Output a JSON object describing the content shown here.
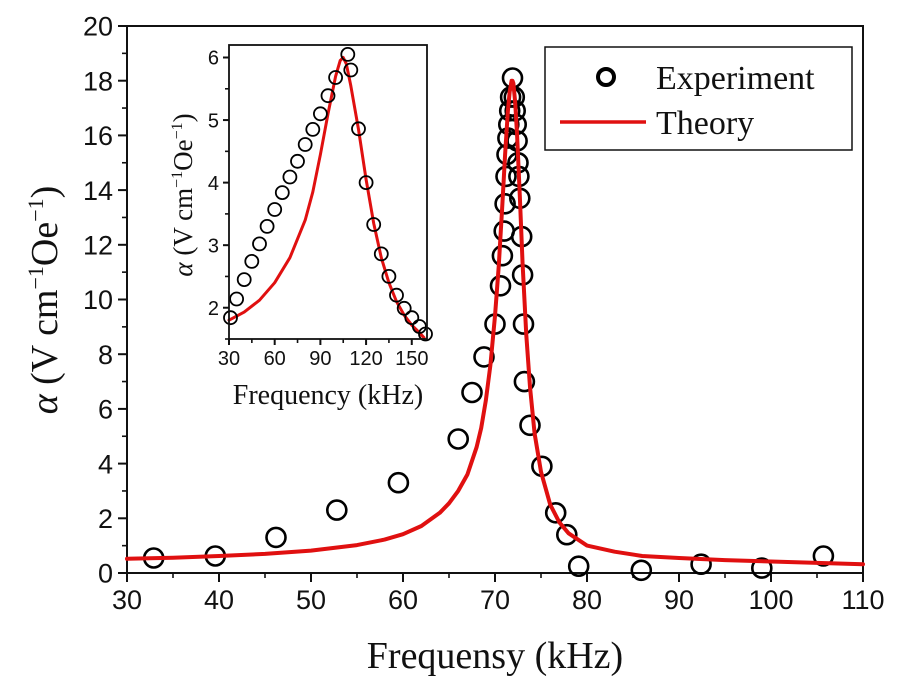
{
  "chart_data": [
    {
      "id": "main",
      "type": "scatter",
      "title": "",
      "xlabel": "Frequensy (kHz)",
      "ylabel": "α (V cm⁻¹Oe⁻¹)",
      "ylabel_parts": {
        "symbol": "α",
        "unit_a": " (V cm",
        "exp_a": "−1",
        "unit_b": "Oe",
        "exp_b": "−1",
        "close": ")"
      },
      "xlim": [
        30,
        110
      ],
      "ylim": [
        0,
        20
      ],
      "xticks": [
        30,
        40,
        50,
        60,
        70,
        80,
        90,
        100,
        110
      ],
      "yticks": [
        0,
        2,
        4,
        6,
        8,
        10,
        12,
        14,
        16,
        18,
        20
      ],
      "grid": false,
      "legend": {
        "placement": "top-right",
        "entries": [
          {
            "label": "Experiment",
            "marker": "circle"
          },
          {
            "label": "Theory",
            "marker": "line"
          }
        ]
      },
      "series": [
        {
          "name": "Experiment",
          "kind": "scatter",
          "color": "#000000",
          "x": [
            32.9,
            39.6,
            46.2,
            52.8,
            59.5,
            66.0,
            67.5,
            68.8,
            70.0,
            70.6,
            70.8,
            71.0,
            71.1,
            71.2,
            71.3,
            71.4,
            71.5,
            71.6,
            71.7,
            71.9,
            72.1,
            72.2,
            72.3,
            72.4,
            72.5,
            72.6,
            72.7,
            72.9,
            73.0,
            73.1,
            73.2,
            73.8,
            75.1,
            76.6,
            77.8,
            79.1,
            85.9,
            92.4,
            99.0,
            105.7
          ],
          "y": [
            0.55,
            0.62,
            1.3,
            2.3,
            3.3,
            4.9,
            6.6,
            7.9,
            9.1,
            10.5,
            11.6,
            12.5,
            13.5,
            14.5,
            15.3,
            15.9,
            16.4,
            16.9,
            17.4,
            18.1,
            17.4,
            16.9,
            16.4,
            15.8,
            15.0,
            14.5,
            13.7,
            12.3,
            10.9,
            9.1,
            7.0,
            5.4,
            3.9,
            2.2,
            1.4,
            0.25,
            0.1,
            0.32,
            0.18,
            0.62
          ]
        },
        {
          "name": "Theory",
          "kind": "line",
          "color": "#e01010",
          "model": "lorentzian",
          "peak_x": 71.9,
          "peak_y": 18.0,
          "x": [
            30,
            35,
            40,
            45,
            50,
            55,
            58,
            60,
            62,
            64,
            65,
            66,
            67,
            68,
            68.5,
            69,
            69.5,
            70,
            70.4,
            70.8,
            71.1,
            71.4,
            71.6,
            71.8,
            71.9,
            72.0,
            72.2,
            72.4,
            72.7,
            73.0,
            73.4,
            73.8,
            74.3,
            75,
            76,
            77,
            78,
            80,
            83,
            86,
            90,
            95,
            100,
            105,
            110
          ],
          "y": [
            0.52,
            0.56,
            0.62,
            0.7,
            0.82,
            1.02,
            1.22,
            1.42,
            1.72,
            2.2,
            2.55,
            3.0,
            3.6,
            4.6,
            5.3,
            6.3,
            7.6,
            9.4,
            11.2,
            13.5,
            15.3,
            16.9,
            17.6,
            18.0,
            18.0,
            17.9,
            17.2,
            16.0,
            13.8,
            11.3,
            8.7,
            6.8,
            5.1,
            3.7,
            2.5,
            1.85,
            1.45,
            1.0,
            0.78,
            0.62,
            0.55,
            0.47,
            0.42,
            0.37,
            0.32
          ]
        }
      ]
    },
    {
      "id": "inset",
      "type": "scatter",
      "title": "",
      "xlabel": "Frequency (kHz)",
      "ylabel": "α (V cm⁻¹Oe⁻¹)",
      "ylabel_parts": {
        "symbol": "α",
        "unit_a": " (V cm",
        "exp_a": "−1",
        "unit_b": "Oe",
        "exp_b": "−1",
        "close": ")"
      },
      "xlim": [
        30,
        160
      ],
      "ylim": [
        1.5,
        6.2
      ],
      "xticks": [
        30,
        60,
        90,
        120,
        150
      ],
      "yticks": [
        2,
        3,
        4,
        5,
        6
      ],
      "grid": false,
      "series": [
        {
          "name": "Experiment",
          "kind": "scatter",
          "color": "#000000",
          "x": [
            31,
            35,
            40,
            45,
            50,
            55,
            60,
            65,
            70,
            75,
            80,
            85,
            90,
            95,
            100,
            108,
            110,
            115,
            120,
            125,
            130,
            135,
            140,
            145,
            150,
            155,
            159
          ],
          "y": [
            1.84,
            2.14,
            2.45,
            2.74,
            3.02,
            3.3,
            3.57,
            3.84,
            4.09,
            4.34,
            4.61,
            4.85,
            5.1,
            5.39,
            5.68,
            6.05,
            5.8,
            4.86,
            4.0,
            3.33,
            2.86,
            2.5,
            2.2,
            1.99,
            1.84,
            1.7,
            1.58
          ]
        },
        {
          "name": "Theory",
          "kind": "line",
          "color": "#e01010",
          "x": [
            30,
            40,
            50,
            60,
            70,
            80,
            85,
            90,
            95,
            100,
            103,
            105,
            107,
            110,
            115,
            120,
            125,
            130,
            135,
            140,
            145,
            150,
            155,
            158
          ],
          "y": [
            1.8,
            1.93,
            2.12,
            2.4,
            2.8,
            3.4,
            3.85,
            4.45,
            5.1,
            5.7,
            5.95,
            6.0,
            5.9,
            5.55,
            4.85,
            4.05,
            3.35,
            2.8,
            2.4,
            2.1,
            1.88,
            1.72,
            1.6,
            1.52
          ]
        }
      ]
    }
  ]
}
